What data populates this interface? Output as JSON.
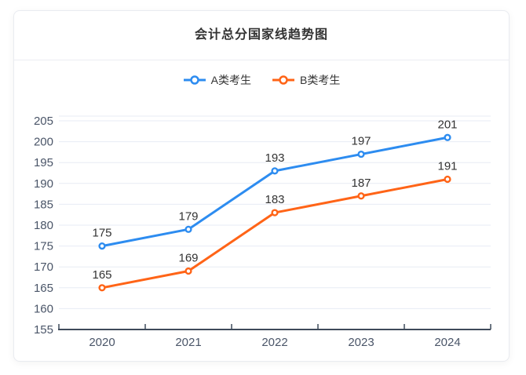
{
  "chart_data": {
    "type": "line",
    "title": "会计总分国家线趋势图",
    "categories": [
      "2020",
      "2021",
      "2022",
      "2023",
      "2024"
    ],
    "series": [
      {
        "name": "A类考生",
        "color": "#2d8cf0",
        "values": [
          175,
          179,
          193,
          197,
          201
        ]
      },
      {
        "name": "B类考生",
        "color": "#ff6417",
        "values": [
          165,
          169,
          183,
          187,
          191
        ]
      }
    ],
    "ylim": [
      155,
      205
    ],
    "y_ticks": [
      155,
      160,
      165,
      170,
      175,
      180,
      185,
      190,
      195,
      200,
      205
    ],
    "grid": true,
    "legend_position": "top",
    "value_labels": true,
    "marker": "hollow-circle",
    "style": {
      "grid_color": "#e7ebf4",
      "axis_color": "#3e4a5a",
      "tick_label_color": "#4a5568",
      "value_label_color": "#333333",
      "card_border_color": "#e9ebf0",
      "background": "#ffffff"
    }
  }
}
